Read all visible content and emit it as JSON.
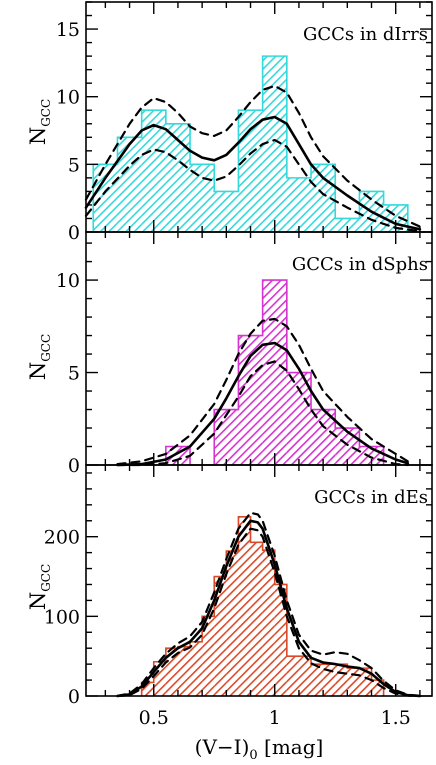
{
  "xaxis": {
    "label_main": "(V−I)",
    "label_sub": "0",
    "label_unit": " [mag]",
    "range": [
      0.22,
      1.65
    ],
    "ticks": [
      0.5,
      1.0,
      1.5
    ],
    "tick_labels": [
      "0.5",
      "1",
      "1.5"
    ],
    "minor_step": 0.1
  },
  "yaxis_label": {
    "main": "N",
    "sub": "GCC"
  },
  "colors": {
    "dirr": "#33d9db",
    "dsph": "#d633d0",
    "de": "#d94a2a",
    "line": "#000000"
  },
  "chart_data": [
    {
      "type": "histogram",
      "title": "GCCs in dIrrs",
      "ylim": [
        0,
        17
      ],
      "yticks": [
        0,
        5,
        10,
        15
      ],
      "ytick_labels": [
        "0",
        "5",
        "10",
        "15"
      ],
      "yminor_step": 1,
      "bin_edges": [
        0.25,
        0.35,
        0.45,
        0.55,
        0.65,
        0.75,
        0.85,
        0.95,
        1.05,
        1.15,
        1.25,
        1.35,
        1.45,
        1.55
      ],
      "counts": [
        5,
        7,
        9,
        8,
        5,
        3,
        9,
        13,
        4,
        5,
        1,
        3,
        2
      ],
      "kde_x": [
        0.22,
        0.3,
        0.4,
        0.45,
        0.5,
        0.55,
        0.6,
        0.65,
        0.7,
        0.75,
        0.8,
        0.85,
        0.9,
        0.95,
        1.0,
        1.05,
        1.1,
        1.15,
        1.2,
        1.3,
        1.4,
        1.5,
        1.6
      ],
      "kde": [
        1.8,
        4.0,
        6.5,
        7.5,
        7.9,
        7.6,
        6.8,
        6.0,
        5.5,
        5.3,
        5.7,
        6.6,
        7.6,
        8.3,
        8.5,
        8.0,
        6.5,
        5.0,
        4.0,
        2.7,
        1.5,
        0.6,
        0.2
      ],
      "kde_upper": [
        2.4,
        5.0,
        8.0,
        9.2,
        9.9,
        9.6,
        8.8,
        7.8,
        7.3,
        7.1,
        7.5,
        8.5,
        9.6,
        10.5,
        10.8,
        10.3,
        8.8,
        7.0,
        5.6,
        3.8,
        2.4,
        1.2,
        0.4
      ],
      "kde_lower": [
        1.2,
        3.0,
        4.9,
        5.7,
        6.1,
        5.9,
        5.3,
        4.6,
        4.0,
        3.8,
        4.1,
        4.9,
        5.8,
        6.5,
        6.8,
        6.3,
        5.0,
        3.7,
        2.8,
        1.8,
        0.9,
        0.3,
        0.05
      ]
    },
    {
      "type": "histogram",
      "title": "GCCs in dSphs",
      "ylim": [
        0,
        12.6
      ],
      "yticks": [
        0,
        5,
        10
      ],
      "ytick_labels": [
        "0",
        "5",
        "10"
      ],
      "yminor_step": 1,
      "bin_edges": [
        0.55,
        0.65,
        0.75,
        0.85,
        0.95,
        1.05,
        1.15,
        1.25,
        1.35,
        1.45
      ],
      "counts": [
        1,
        0,
        3,
        7,
        10,
        5,
        3,
        2,
        1
      ],
      "kde_x": [
        0.35,
        0.45,
        0.55,
        0.65,
        0.75,
        0.8,
        0.85,
        0.9,
        0.95,
        1.0,
        1.05,
        1.1,
        1.15,
        1.2,
        1.3,
        1.4,
        1.5,
        1.55
      ],
      "kde": [
        0.0,
        0.05,
        0.3,
        1.0,
        2.5,
        3.6,
        4.8,
        5.9,
        6.5,
        6.6,
        6.2,
        5.2,
        4.0,
        3.0,
        1.8,
        0.9,
        0.3,
        0.1
      ],
      "kde_upper": [
        0.05,
        0.2,
        0.6,
        1.6,
        3.3,
        4.6,
        6.0,
        7.1,
        7.8,
        7.9,
        7.5,
        6.5,
        5.2,
        4.0,
        2.6,
        1.4,
        0.6,
        0.2
      ],
      "kde_lower": [
        0.0,
        0.0,
        0.1,
        0.5,
        1.7,
        2.7,
        3.7,
        4.8,
        5.4,
        5.6,
        5.1,
        4.1,
        3.0,
        2.1,
        1.1,
        0.4,
        0.05,
        0.0
      ]
    },
    {
      "type": "histogram",
      "title": "GCCs in dEs",
      "ylim": [
        0,
        290
      ],
      "yticks": [
        0,
        100,
        200
      ],
      "ytick_labels": [
        "0",
        "100",
        "200"
      ],
      "yminor_step": 20,
      "bin_edges": [
        0.45,
        0.5,
        0.55,
        0.6,
        0.65,
        0.7,
        0.75,
        0.8,
        0.85,
        0.9,
        0.95,
        1.0,
        1.05,
        1.1,
        1.15,
        1.2,
        1.25,
        1.3,
        1.35,
        1.4,
        1.45
      ],
      "counts": [
        17,
        43,
        60,
        62,
        68,
        100,
        150,
        182,
        225,
        193,
        183,
        140,
        50,
        50,
        40,
        40,
        40,
        35,
        35,
        20
      ],
      "kde_x": [
        0.35,
        0.4,
        0.45,
        0.5,
        0.55,
        0.6,
        0.65,
        0.7,
        0.75,
        0.8,
        0.85,
        0.9,
        0.93,
        0.95,
        1.0,
        1.05,
        1.1,
        1.15,
        1.2,
        1.25,
        1.3,
        1.35,
        1.4,
        1.45,
        1.5,
        1.55,
        1.6
      ],
      "kde": [
        0.0,
        2.0,
        12.0,
        30.0,
        48.0,
        60.0,
        68.0,
        85.0,
        120.0,
        163.0,
        200.0,
        220.0,
        218.0,
        210.0,
        165.0,
        110.0,
        68.0,
        48.0,
        42.0,
        40.0,
        37.0,
        35.0,
        28.0,
        15.0,
        5.0,
        1.0,
        0.0
      ],
      "kde_upper": [
        0.2,
        3.0,
        15.0,
        35.0,
        53.0,
        66.0,
        75.0,
        93.0,
        130.0,
        172.0,
        210.0,
        230.0,
        228.0,
        220.0,
        176.0,
        120.0,
        77.0,
        57.0,
        52.0,
        55.0,
        53.0,
        45.0,
        35.0,
        19.0,
        7.0,
        1.5,
        0.2
      ],
      "kde_lower": [
        0.0,
        1.0,
        9.0,
        25.0,
        42.0,
        54.0,
        61.0,
        77.0,
        110.0,
        153.0,
        190.0,
        210.0,
        208.0,
        200.0,
        155.0,
        100.0,
        60.0,
        41.0,
        34.0,
        30.0,
        28.0,
        26.0,
        20.0,
        10.0,
        3.0,
        0.5,
        0.0
      ]
    }
  ]
}
